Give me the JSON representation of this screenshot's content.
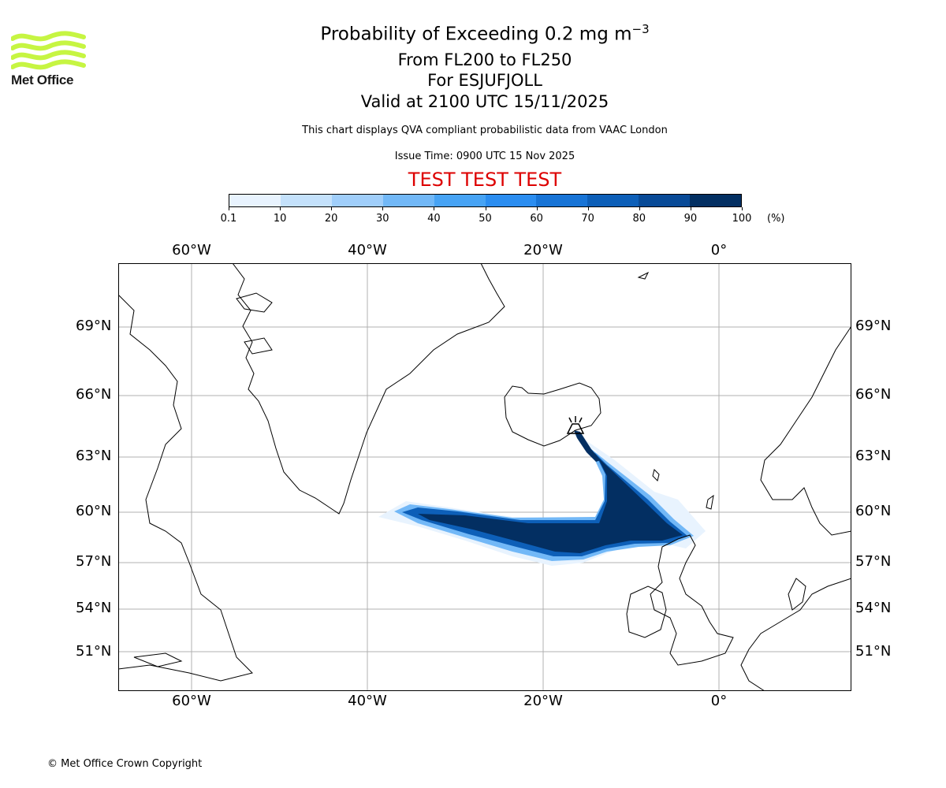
{
  "logo": {
    "text": "Met Office",
    "color": "#c6f542"
  },
  "header": {
    "title_main": "Probability of Exceeding 0.2 mg m",
    "title_exponent": "−3",
    "level_range": "From FL200 to FL250",
    "volcano": "For ESJUFJOLL",
    "valid_time": "Valid at 2100 UTC 15/11/2025",
    "disclaimer": "This chart displays QVA compliant probabilistic data from VAAC London",
    "issue_time": "Issue Time: 0900 UTC 15 Nov 2025",
    "test_banner": "TEST TEST TEST",
    "test_color": "#dd0000"
  },
  "colorbar": {
    "ticks": [
      "0.1",
      "10",
      "20",
      "30",
      "40",
      "50",
      "60",
      "70",
      "80",
      "90",
      "100"
    ],
    "unit": "(%)",
    "colors": [
      "#e8f3fe",
      "#c4e1fb",
      "#a0cefa",
      "#72b8f7",
      "#47a3f4",
      "#2b8df0",
      "#1874d6",
      "#0d5fb8",
      "#084a97",
      "#032f62"
    ]
  },
  "map": {
    "longitude_labels": [
      "60°W",
      "40°W",
      "20°W",
      "0°"
    ],
    "latitude_labels": [
      "69°N",
      "66°N",
      "63°N",
      "60°N",
      "57°N",
      "54°N",
      "51°N"
    ],
    "volcano_marker": "volcano-icon"
  },
  "footer": {
    "copyright": "© Met Office Crown Copyright"
  }
}
